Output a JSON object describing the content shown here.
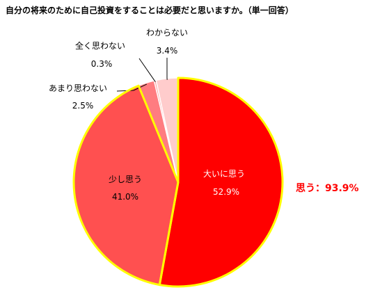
{
  "chart_data": {
    "type": "pie",
    "title": "自分の将来のために自己投資をすることは必要だと思いますか。（単一回答）",
    "slices": [
      {
        "label": "大いに思う",
        "value": 52.9,
        "display": "52.9%",
        "color": "#ff0000"
      },
      {
        "label": "少し思う",
        "value": 41.0,
        "display": "41.0%",
        "color": "#ff5050"
      },
      {
        "label": "あまり思わない",
        "value": 2.5,
        "display": "2.5%",
        "color": "#ff7c80"
      },
      {
        "label": "全く思わない",
        "value": 0.3,
        "display": "0.3%",
        "color": "#ffa0a0"
      },
      {
        "label": "わからない",
        "value": 3.4,
        "display": "3.4%",
        "color": "#ffcccc"
      }
    ],
    "highlight_border_color": "#ffff00",
    "summary": {
      "label": "思う：93.9%",
      "color": "#ff0000"
    }
  }
}
